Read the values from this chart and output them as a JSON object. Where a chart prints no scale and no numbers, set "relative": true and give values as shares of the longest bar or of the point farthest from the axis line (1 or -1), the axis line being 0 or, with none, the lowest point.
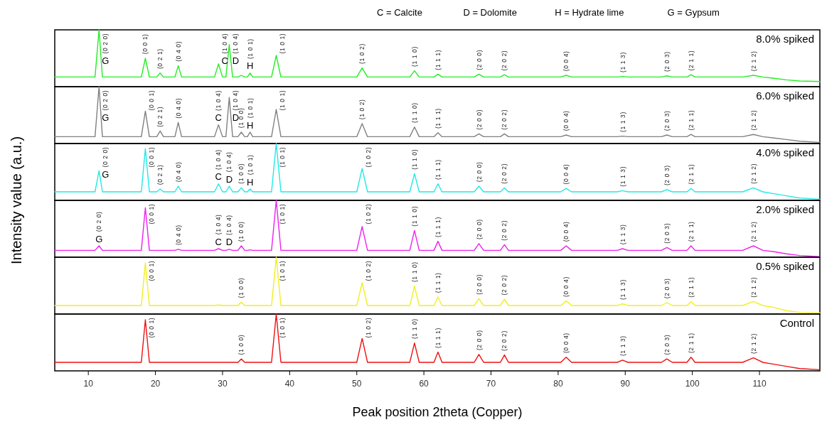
{
  "chart_data": [
    {
      "type": "line",
      "title": "8.0% spiked",
      "ylabel": "Intensity  value (a.u.)",
      "relative": true,
      "xlim": [
        5,
        119
      ],
      "tick_labels": false,
      "x": [
        5,
        8,
        10,
        11,
        11.6,
        12.1,
        14,
        17,
        17.9,
        18.5,
        19.1,
        20.2,
        20.7,
        21.2,
        22.9,
        23.4,
        23.9,
        26,
        28.8,
        29.4,
        30,
        30.5,
        31,
        31.5,
        32.3,
        32.8,
        33.3,
        33.7,
        34.1,
        34.5,
        37.3,
        38,
        38.7,
        42,
        46,
        48,
        50,
        50.8,
        51.6,
        55,
        57.9,
        58.6,
        59.3,
        61.5,
        62.1,
        62.7,
        67.5,
        68.2,
        68.9,
        71.4,
        72,
        72.6,
        80.4,
        81.2,
        82,
        88.8,
        89.6,
        90.4,
        95.4,
        96.2,
        97,
        99.2,
        99.8,
        100.4,
        107.5,
        109.1,
        110.5,
        112,
        114,
        116,
        119
      ],
      "series": [
        {
          "color": "#22ee22",
          "values": [
            0.17,
            0.17,
            0.17,
            0.17,
            1,
            0.17,
            0.17,
            0.17,
            0.17,
            0.5,
            0.17,
            0.17,
            0.24,
            0.17,
            0.17,
            0.37,
            0.17,
            0.17,
            0.17,
            0.4,
            0.17,
            0.17,
            0.74,
            0.17,
            0.17,
            0.2,
            0.17,
            0.17,
            0.24,
            0.17,
            0.17,
            0.55,
            0.17,
            0.17,
            0.17,
            0.17,
            0.17,
            0.33,
            0.17,
            0.17,
            0.17,
            0.28,
            0.17,
            0.17,
            0.22,
            0.17,
            0.17,
            0.22,
            0.17,
            0.17,
            0.21,
            0.17,
            0.17,
            0.2,
            0.17,
            0.17,
            0.18,
            0.17,
            0.17,
            0.19,
            0.17,
            0.17,
            0.21,
            0.17,
            0.17,
            0.2,
            0.17,
            0.15,
            0.12,
            0.1,
            0.09
          ]
        }
      ],
      "annotations": [
        "C = Calcite",
        "D = Dolomite",
        "H = Hydrate lime",
        "G = Gypsum",
        {
          "text": "G",
          "x": 11.6,
          "y": 1
        },
        {
          "text": "(0 2 0)",
          "x": 11.6,
          "y": 1
        },
        {
          "text": "(0 0 1)",
          "x": 18.5,
          "y": 0.5
        },
        {
          "text": "(0 2 1)",
          "x": 20.7,
          "y": 0.24
        },
        {
          "text": "(0 4 0)",
          "x": 23.4,
          "y": 0.37
        },
        {
          "text": "C",
          "x": 29.4,
          "y": 0.4
        },
        {
          "text": "(1 0 4)",
          "x": 29.4,
          "y": 0.4
        },
        {
          "text": "D",
          "x": 31,
          "y": 0.74
        },
        {
          "text": "(1 0 4)",
          "x": 31,
          "y": 0.74
        },
        {
          "text": "H",
          "x": 34.1,
          "y": 0.24
        },
        {
          "text": "(1 0 1)",
          "x": 34.1,
          "y": 0.24
        },
        {
          "text": "(1 0 1)",
          "x": 38,
          "y": 0.55
        },
        {
          "text": "(1 0 2)",
          "x": 50.8,
          "y": 0.33
        },
        {
          "text": "(1 1 0)",
          "x": 58.6,
          "y": 0.28
        },
        {
          "text": "(1 1 1)",
          "x": 62.1,
          "y": 0.22
        },
        {
          "text": "(2 0 0)",
          "x": 68.2,
          "y": 0.22
        },
        {
          "text": "(2 0 2)",
          "x": 72,
          "y": 0.21
        },
        {
          "text": "(0 0 4)",
          "x": 81.2,
          "y": 0.2
        },
        {
          "text": "(1 1 3)",
          "x": 89.6,
          "y": 0.18
        },
        {
          "text": "(2 0 3)",
          "x": 96.2,
          "y": 0.19
        },
        {
          "text": "(2 1 1)",
          "x": 99.8,
          "y": 0.21
        },
        {
          "text": "(2 1 2)",
          "x": 109.1,
          "y": 0.2
        }
      ]
    },
    {
      "type": "line",
      "title": "6.0% spiked",
      "relative": true,
      "xlim": [
        5,
        119
      ],
      "tick_labels": false,
      "x": [
        5,
        8,
        10,
        11,
        11.6,
        12.1,
        14,
        17,
        17.9,
        18.5,
        19.1,
        20.2,
        20.7,
        21.2,
        22.9,
        23.4,
        23.9,
        26,
        28.8,
        29.4,
        30,
        30.5,
        31,
        31.5,
        32.3,
        32.8,
        33.3,
        33.7,
        34.1,
        34.5,
        37.3,
        38,
        38.7,
        42,
        46,
        48,
        50,
        50.8,
        51.6,
        55,
        57.9,
        58.6,
        59.3,
        61.5,
        62.1,
        62.7,
        67.5,
        68.2,
        68.9,
        71.4,
        72,
        72.6,
        80.4,
        81.2,
        82,
        88.8,
        89.6,
        90.4,
        95.4,
        96.2,
        97,
        99.2,
        99.8,
        100.4,
        107.5,
        109.1,
        110.5,
        112,
        114,
        116,
        119
      ],
      "series": [
        {
          "color": "#808080",
          "values": [
            0.12,
            0.12,
            0.12,
            0.12,
            1,
            0.12,
            0.12,
            0.12,
            0.12,
            0.57,
            0.12,
            0.12,
            0.22,
            0.12,
            0.12,
            0.37,
            0.12,
            0.12,
            0.12,
            0.33,
            0.12,
            0.12,
            0.81,
            0.12,
            0.12,
            0.2,
            0.12,
            0.12,
            0.2,
            0.12,
            0.12,
            0.6,
            0.12,
            0.12,
            0.12,
            0.12,
            0.12,
            0.35,
            0.12,
            0.12,
            0.12,
            0.29,
            0.12,
            0.12,
            0.19,
            0.12,
            0.12,
            0.17,
            0.12,
            0.12,
            0.17,
            0.12,
            0.12,
            0.15,
            0.12,
            0.12,
            0.13,
            0.12,
            0.12,
            0.15,
            0.12,
            0.12,
            0.16,
            0.12,
            0.12,
            0.16,
            0.12,
            0.1,
            0.07,
            0.04,
            0.02
          ]
        }
      ],
      "annotations": [
        {
          "text": "G",
          "x": 11.6,
          "y": 1
        },
        {
          "text": "(0 2 0)",
          "x": 11.6,
          "y": 1
        },
        {
          "text": "(0 0 1)",
          "x": 18.5,
          "y": 0.57
        },
        {
          "text": "(0 2 1)",
          "x": 20.7,
          "y": 0.22
        },
        {
          "text": "(0 4 0)",
          "x": 23.4,
          "y": 0.37
        },
        {
          "text": "C",
          "x": 29.4,
          "y": 0.33
        },
        {
          "text": "(1 0 4)",
          "x": 29.4,
          "y": 0.33
        },
        {
          "text": "D",
          "x": 31,
          "y": 0.81
        },
        {
          "text": "(1 0 4)",
          "x": 31,
          "y": 0.81
        },
        {
          "text": "(1 0 0)",
          "x": 32.8,
          "y": 0.2
        },
        {
          "text": "H",
          "x": 34.1,
          "y": 0.2
        },
        {
          "text": "(1 0 1)",
          "x": 34.1,
          "y": 0.2
        },
        {
          "text": "(1 0 1)",
          "x": 38,
          "y": 0.6
        },
        {
          "text": "(1 0 2)",
          "x": 50.8,
          "y": 0.35
        },
        {
          "text": "(1 1 0)",
          "x": 58.6,
          "y": 0.29
        },
        {
          "text": "(1 1 1)",
          "x": 62.1,
          "y": 0.19
        },
        {
          "text": "(2 0 0)",
          "x": 68.2,
          "y": 0.17
        },
        {
          "text": "(2 0 2)",
          "x": 72,
          "y": 0.17
        },
        {
          "text": "(0 0 4)",
          "x": 81.2,
          "y": 0.15
        },
        {
          "text": "(1 1 3)",
          "x": 89.6,
          "y": 0.13
        },
        {
          "text": "(2 0 3)",
          "x": 96.2,
          "y": 0.15
        },
        {
          "text": "(2 1 1)",
          "x": 99.8,
          "y": 0.16
        },
        {
          "text": "(2 1 2)",
          "x": 109.1,
          "y": 0.16
        }
      ]
    },
    {
      "type": "line",
      "title": "4.0% spiked",
      "relative": true,
      "xlim": [
        5,
        119
      ],
      "tick_labels": false,
      "x": [
        5,
        8,
        10,
        11,
        11.6,
        12.1,
        14,
        17,
        17.9,
        18.5,
        19.1,
        20.2,
        20.7,
        21.2,
        22.9,
        23.4,
        23.9,
        26,
        28.8,
        29.4,
        30,
        30.5,
        31,
        31.5,
        32.3,
        32.8,
        33.3,
        33.7,
        34.1,
        34.5,
        37.3,
        38,
        38.7,
        42,
        46,
        48,
        50,
        50.8,
        51.6,
        55,
        57.9,
        58.6,
        59.3,
        61.5,
        62.1,
        62.7,
        67.5,
        68.2,
        68.9,
        71.4,
        72,
        72.6,
        80.4,
        81.2,
        82,
        88.8,
        89.6,
        90.4,
        95.4,
        96.2,
        97,
        99.2,
        99.8,
        100.4,
        107.5,
        109.1,
        110.5,
        112,
        114,
        116,
        119
      ],
      "series": [
        {
          "color": "#22e8e8",
          "values": [
            0.15,
            0.15,
            0.15,
            0.15,
            0.52,
            0.15,
            0.15,
            0.15,
            0.15,
            0.91,
            0.15,
            0.15,
            0.2,
            0.15,
            0.15,
            0.25,
            0.15,
            0.15,
            0.15,
            0.29,
            0.15,
            0.15,
            0.25,
            0.15,
            0.15,
            0.22,
            0.15,
            0.15,
            0.2,
            0.15,
            0.15,
            1,
            0.15,
            0.15,
            0.15,
            0.15,
            0.15,
            0.56,
            0.15,
            0.15,
            0.15,
            0.47,
            0.15,
            0.15,
            0.29,
            0.15,
            0.15,
            0.25,
            0.15,
            0.15,
            0.22,
            0.15,
            0.15,
            0.21,
            0.15,
            0.15,
            0.17,
            0.15,
            0.15,
            0.19,
            0.15,
            0.15,
            0.21,
            0.15,
            0.15,
            0.22,
            0.15,
            0.12,
            0.08,
            0.04,
            0.02
          ]
        }
      ],
      "annotations": [
        {
          "text": "G",
          "x": 11.6,
          "y": 0.52
        },
        {
          "text": "(0 2 0)",
          "x": 11.6,
          "y": 0.52
        },
        {
          "text": "(0 0 1)",
          "x": 18.5,
          "y": 0.91
        },
        {
          "text": "(0 2 1)",
          "x": 20.7,
          "y": 0.2
        },
        {
          "text": "(0 4 0)",
          "x": 23.4,
          "y": 0.25
        },
        {
          "text": "C",
          "x": 29.4,
          "y": 0.29
        },
        {
          "text": "(1 0 4)",
          "x": 29.4,
          "y": 0.29
        },
        {
          "text": "D",
          "x": 31,
          "y": 0.25
        },
        {
          "text": "(1 0 4)",
          "x": 31,
          "y": 0.25
        },
        {
          "text": "(1 0 0)",
          "x": 32.8,
          "y": 0.22
        },
        {
          "text": "H",
          "x": 34.1,
          "y": 0.2
        },
        {
          "text": "(1 0 1)",
          "x": 34.1,
          "y": 0.2
        },
        {
          "text": "(1 0 1)",
          "x": 38,
          "y": 1
        },
        {
          "text": "(1 0 2)",
          "x": 50.8,
          "y": 0.56
        },
        {
          "text": "(1 1 0)",
          "x": 58.6,
          "y": 0.47
        },
        {
          "text": "(1 1 1)",
          "x": 62.1,
          "y": 0.29
        },
        {
          "text": "(2 0 0)",
          "x": 68.2,
          "y": 0.25
        },
        {
          "text": "(2 0 2)",
          "x": 72,
          "y": 0.22
        },
        {
          "text": "(0 0 4)",
          "x": 81.2,
          "y": 0.21
        },
        {
          "text": "(1 1 3)",
          "x": 89.6,
          "y": 0.17
        },
        {
          "text": "(2 0 3)",
          "x": 96.2,
          "y": 0.19
        },
        {
          "text": "(2 1 1)",
          "x": 99.8,
          "y": 0.21
        },
        {
          "text": "(2 1 2)",
          "x": 109.1,
          "y": 0.22
        }
      ]
    },
    {
      "type": "line",
      "title": "2.0% spiked",
      "relative": true,
      "xlim": [
        5,
        119
      ],
      "tick_labels": false,
      "x": [
        5,
        8,
        10,
        11,
        11.6,
        12.1,
        14,
        17,
        17.9,
        18.5,
        19.1,
        20.2,
        20.7,
        21.2,
        22.9,
        23.4,
        23.9,
        26,
        28.8,
        29.4,
        30,
        30.5,
        31,
        31.5,
        32.3,
        32.8,
        33.3,
        33.7,
        34.1,
        34.5,
        37.3,
        38,
        38.7,
        42,
        46,
        48,
        50,
        50.8,
        51.6,
        55,
        57.9,
        58.6,
        59.3,
        61.5,
        62.1,
        62.7,
        67.5,
        68.2,
        68.9,
        71.4,
        72,
        72.6,
        80.4,
        81.2,
        82,
        88.8,
        89.6,
        90.4,
        95.4,
        96.2,
        97,
        99.2,
        99.8,
        100.4,
        107.5,
        109.1,
        110.5,
        112,
        114,
        116,
        119
      ],
      "series": [
        {
          "color": "#ee22ee",
          "values": [
            0.12,
            0.12,
            0.12,
            0.12,
            0.2,
            0.12,
            0.12,
            0.12,
            0.12,
            0.87,
            0.12,
            0.12,
            0.12,
            0.12,
            0.12,
            0.14,
            0.12,
            0.12,
            0.12,
            0.15,
            0.12,
            0.12,
            0.14,
            0.12,
            0.12,
            0.2,
            0.12,
            0.12,
            0.13,
            0.12,
            0.12,
            1,
            0.12,
            0.12,
            0.12,
            0.12,
            0.12,
            0.54,
            0.12,
            0.12,
            0.12,
            0.47,
            0.12,
            0.12,
            0.28,
            0.12,
            0.12,
            0.24,
            0.12,
            0.12,
            0.22,
            0.12,
            0.12,
            0.2,
            0.12,
            0.12,
            0.15,
            0.12,
            0.12,
            0.17,
            0.12,
            0.12,
            0.2,
            0.12,
            0.12,
            0.2,
            0.12,
            0.1,
            0.06,
            0.03,
            0.01
          ]
        }
      ],
      "annotations": [
        {
          "text": "G",
          "x": 11.6,
          "y": 0.2
        },
        {
          "text": "(0 2 0)",
          "x": 11.6,
          "y": 0.2
        },
        {
          "text": "(0 0 1)",
          "x": 18.5,
          "y": 0.87
        },
        {
          "text": "(0 4 0)",
          "x": 23.4,
          "y": 0.14
        },
        {
          "text": "C",
          "x": 29.4,
          "y": 0.15
        },
        {
          "text": "(1 0 4)",
          "x": 29.4,
          "y": 0.15
        },
        {
          "text": "D",
          "x": 31,
          "y": 0.14
        },
        {
          "text": "(1 0 4)",
          "x": 31,
          "y": 0.14
        },
        {
          "text": "(1 0 0)",
          "x": 32.8,
          "y": 0.2
        },
        {
          "text": "(1 0 1)",
          "x": 38,
          "y": 1
        },
        {
          "text": "(1 0 2)",
          "x": 50.8,
          "y": 0.54
        },
        {
          "text": "(1 1 0)",
          "x": 58.6,
          "y": 0.47
        },
        {
          "text": "(1 1 1)",
          "x": 62.1,
          "y": 0.28
        },
        {
          "text": "(2 0 0)",
          "x": 68.2,
          "y": 0.24
        },
        {
          "text": "(2 0 2)",
          "x": 72,
          "y": 0.22
        },
        {
          "text": "(0 0 4)",
          "x": 81.2,
          "y": 0.2
        },
        {
          "text": "(1 1 3)",
          "x": 89.6,
          "y": 0.15
        },
        {
          "text": "(2 0 3)",
          "x": 96.2,
          "y": 0.17
        },
        {
          "text": "(2 1 1)",
          "x": 99.8,
          "y": 0.2
        },
        {
          "text": "(2 1 2)",
          "x": 109.1,
          "y": 0.2
        }
      ]
    },
    {
      "type": "line",
      "title": "0.5% spiked",
      "relative": true,
      "xlim": [
        5,
        119
      ],
      "tick_labels": false,
      "x": [
        5,
        8,
        10,
        11,
        11.6,
        12.1,
        14,
        17,
        17.9,
        18.5,
        19.1,
        20.2,
        20.7,
        21.2,
        22.9,
        23.4,
        23.9,
        26,
        28.8,
        29.4,
        30,
        30.5,
        31,
        31.5,
        32.3,
        32.8,
        33.3,
        33.7,
        34.1,
        34.5,
        37.3,
        38,
        38.7,
        42,
        46,
        48,
        50,
        50.8,
        51.6,
        55,
        57.9,
        58.6,
        59.3,
        61.5,
        62.1,
        62.7,
        67.5,
        68.2,
        68.9,
        71.4,
        72,
        72.6,
        80.4,
        81.2,
        82,
        88.8,
        89.6,
        90.4,
        95.4,
        96.2,
        97,
        99.2,
        99.8,
        100.4,
        107.5,
        109.1,
        110.5,
        112,
        114,
        116,
        119
      ],
      "series": [
        {
          "color": "#f0f020",
          "values": [
            0.15,
            0.15,
            0.15,
            0.15,
            0.15,
            0.15,
            0.15,
            0.15,
            0.15,
            0.9,
            0.15,
            0.15,
            0.15,
            0.15,
            0.15,
            0.15,
            0.15,
            0.15,
            0.15,
            0.16,
            0.15,
            0.15,
            0.15,
            0.15,
            0.15,
            0.21,
            0.15,
            0.15,
            0.15,
            0.15,
            0.15,
            1,
            0.15,
            0.15,
            0.15,
            0.15,
            0.15,
            0.55,
            0.15,
            0.15,
            0.15,
            0.49,
            0.15,
            0.15,
            0.3,
            0.15,
            0.15,
            0.27,
            0.15,
            0.15,
            0.26,
            0.15,
            0.15,
            0.23,
            0.15,
            0.15,
            0.18,
            0.15,
            0.15,
            0.2,
            0.15,
            0.15,
            0.22,
            0.15,
            0.15,
            0.22,
            0.15,
            0.12,
            0.06,
            0.03,
            0.02
          ]
        }
      ],
      "annotations": [
        {
          "text": "(0 0 1)",
          "x": 18.5,
          "y": 0.9
        },
        {
          "text": "(1 0 0)",
          "x": 32.8,
          "y": 0.21
        },
        {
          "text": "(1 0 1)",
          "x": 38,
          "y": 1
        },
        {
          "text": "(1 0 2)",
          "x": 50.8,
          "y": 0.55
        },
        {
          "text": "(1 1 0)",
          "x": 58.6,
          "y": 0.49
        },
        {
          "text": "(1 1 1)",
          "x": 62.1,
          "y": 0.3
        },
        {
          "text": "(2 0 0)",
          "x": 68.2,
          "y": 0.27
        },
        {
          "text": "(2 0 2)",
          "x": 72,
          "y": 0.26
        },
        {
          "text": "(0 0 4)",
          "x": 81.2,
          "y": 0.23
        },
        {
          "text": "(1 1 3)",
          "x": 89.6,
          "y": 0.18
        },
        {
          "text": "(2 0 3)",
          "x": 96.2,
          "y": 0.2
        },
        {
          "text": "(2 1 1)",
          "x": 99.8,
          "y": 0.22
        },
        {
          "text": "(2 1 2)",
          "x": 109.1,
          "y": 0.22
        }
      ]
    },
    {
      "type": "line",
      "title": "Control",
      "xlabel": "Peak position 2theta (Copper)",
      "relative": true,
      "xlim": [
        5,
        119
      ],
      "xticks": [
        10,
        20,
        30,
        40,
        50,
        60,
        70,
        80,
        90,
        100,
        110
      ],
      "tick_labels": "x",
      "x": [
        5,
        8,
        10,
        11,
        11.6,
        12.1,
        14,
        17,
        17.9,
        18.5,
        19.1,
        20.2,
        20.7,
        21.2,
        22.9,
        23.4,
        23.9,
        26,
        28.8,
        29.4,
        30,
        30.5,
        31,
        31.5,
        32.3,
        32.8,
        33.3,
        33.7,
        34.1,
        34.5,
        37.3,
        38,
        38.7,
        42,
        46,
        48,
        50,
        50.8,
        51.6,
        55,
        57.9,
        58.6,
        59.3,
        61.5,
        62.1,
        62.7,
        67.5,
        68.2,
        68.9,
        71.4,
        72,
        72.6,
        80.4,
        81.2,
        82,
        88.8,
        89.6,
        90.4,
        95.4,
        96.2,
        97,
        99.2,
        99.8,
        100.4,
        107.5,
        109.1,
        110.5,
        112,
        114,
        116,
        119
      ],
      "series": [
        {
          "color": "#ee1111",
          "values": [
            0.15,
            0.15,
            0.15,
            0.15,
            0.15,
            0.15,
            0.15,
            0.15,
            0.15,
            0.9,
            0.15,
            0.15,
            0.15,
            0.15,
            0.15,
            0.15,
            0.15,
            0.15,
            0.15,
            0.15,
            0.15,
            0.15,
            0.15,
            0.15,
            0.15,
            0.21,
            0.15,
            0.15,
            0.15,
            0.15,
            0.15,
            1,
            0.15,
            0.15,
            0.15,
            0.15,
            0.15,
            0.57,
            0.15,
            0.15,
            0.15,
            0.49,
            0.15,
            0.15,
            0.33,
            0.15,
            0.15,
            0.29,
            0.15,
            0.15,
            0.28,
            0.15,
            0.15,
            0.24,
            0.15,
            0.15,
            0.19,
            0.15,
            0.15,
            0.21,
            0.15,
            0.15,
            0.24,
            0.15,
            0.15,
            0.23,
            0.15,
            0.12,
            0.08,
            0.04,
            0.02
          ]
        }
      ],
      "annotations": [
        {
          "text": "(0 0 1)",
          "x": 18.5,
          "y": 0.9
        },
        {
          "text": "(1 0 0)",
          "x": 32.8,
          "y": 0.21
        },
        {
          "text": "(1 0 1)",
          "x": 38,
          "y": 1
        },
        {
          "text": "(1 0 2)",
          "x": 50.8,
          "y": 0.57
        },
        {
          "text": "(1 1 0)",
          "x": 58.6,
          "y": 0.49
        },
        {
          "text": "(1 1 1)",
          "x": 62.1,
          "y": 0.33
        },
        {
          "text": "(2 0 0)",
          "x": 68.2,
          "y": 0.29
        },
        {
          "text": "(2 0 2)",
          "x": 72,
          "y": 0.28
        },
        {
          "text": "(0 0 4)",
          "x": 81.2,
          "y": 0.24
        },
        {
          "text": "(1 1 3)",
          "x": 89.6,
          "y": 0.19
        },
        {
          "text": "(2 0 3)",
          "x": 96.2,
          "y": 0.21
        },
        {
          "text": "(2 1 1)",
          "x": 99.8,
          "y": 0.24
        },
        {
          "text": "(2 1 2)",
          "x": 109.1,
          "y": 0.23
        }
      ]
    }
  ]
}
